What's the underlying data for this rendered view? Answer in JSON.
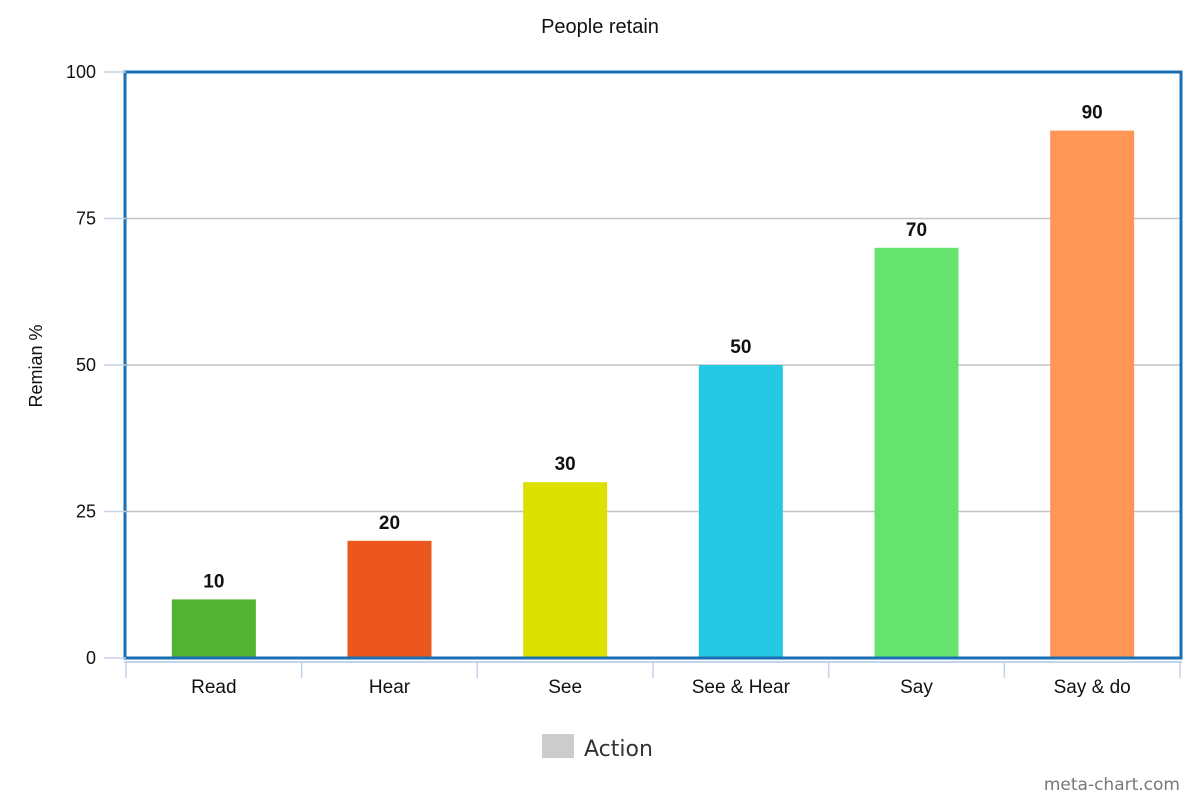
{
  "chart_data": {
    "type": "bar",
    "title": "People retain",
    "ylabel": "Remian %",
    "xlabel": "",
    "ylim": [
      0,
      100
    ],
    "yticks": [
      0,
      25,
      50,
      75,
      100
    ],
    "categories": [
      "Read",
      "Hear",
      "See",
      "See & Hear",
      "Say",
      "Say & do"
    ],
    "series": [
      {
        "name": "Action",
        "values": [
          10,
          20,
          30,
          50,
          70,
          90
        ],
        "colors": [
          "#52b231",
          "#ec571e",
          "#dde100",
          "#25c9e4",
          "#64e46e",
          "#ff9657"
        ]
      }
    ],
    "data_labels": [
      "10",
      "20",
      "30",
      "50",
      "70",
      "90"
    ],
    "legend": {
      "position": "bottom-center",
      "swatch_color": "#cccccc"
    },
    "grid": true,
    "frame_color": "#1b6fb5",
    "gridline_color": "#c4c4c4"
  },
  "credit": "meta-chart.com"
}
